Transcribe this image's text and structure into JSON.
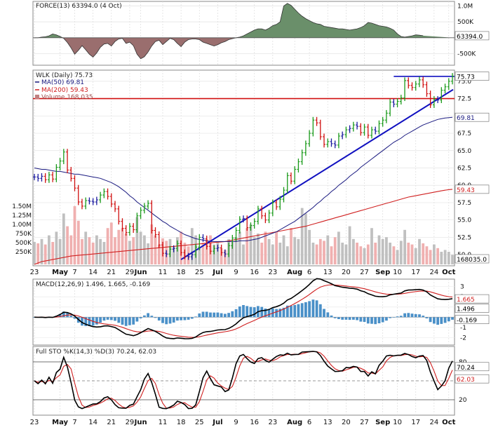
{
  "chart_data": {
    "type": "stock-chart",
    "symbol": "WLK",
    "colors": {
      "force_pos": "#6a8f6a",
      "force_neg": "#9a6e6e",
      "up": "#1a9a1a",
      "down": "#d01010",
      "neutral": "#1a1aa0",
      "ma50": "#1a1a80",
      "ma200": "#d02020",
      "trend": "#1010c0",
      "macd": "#000000",
      "signal": "#d02020",
      "hist": "#4a90c8",
      "k": "#000000",
      "d": "#d02020",
      "vol_up": "#c0c0c0",
      "vol_down": "#f0b0b0"
    },
    "force": {
      "title": "FORCE(13) 63394.0 (4 Oct)",
      "last_value": "63394.0",
      "y_ticks": [
        "1.0M",
        "500K",
        "-500K"
      ],
      "range": [
        -800000,
        1100000
      ],
      "values": [
        0,
        0,
        20000,
        30000,
        60000,
        120000,
        90000,
        40000,
        -20000,
        -150000,
        -320000,
        -520000,
        -400000,
        -250000,
        -380000,
        -520000,
        -610000,
        -480000,
        -300000,
        -200000,
        -180000,
        -260000,
        -120000,
        -40000,
        -20000,
        -180000,
        -140000,
        -250000,
        -520000,
        -660000,
        -600000,
        -450000,
        -260000,
        -120000,
        -80000,
        -220000,
        -120000,
        -20000,
        -60000,
        -180000,
        -280000,
        -140000,
        -60000,
        -40000,
        -40000,
        -60000,
        -140000,
        -180000,
        -220000,
        -260000,
        -220000,
        -160000,
        -120000,
        -60000,
        -30000,
        0,
        20000,
        60000,
        120000,
        180000,
        240000,
        280000,
        280000,
        240000,
        300000,
        380000,
        420000,
        500000,
        1000000,
        1080000,
        1020000,
        900000,
        780000,
        680000,
        600000,
        540000,
        480000,
        440000,
        420000,
        360000,
        340000,
        320000,
        300000,
        280000,
        280000,
        260000,
        240000,
        260000,
        280000,
        320000,
        380000,
        480000,
        460000,
        420000,
        380000,
        360000,
        340000,
        300000,
        240000,
        120000,
        40000,
        20000,
        40000,
        60000,
        90000,
        80000,
        63394
      ]
    },
    "price": {
      "title": "WLK (Daily) 75.73",
      "last": "75.73",
      "ma50_label": "MA(50) 69.81",
      "ma50_last": "69.81",
      "ma200_label": "MA(200) 59.43",
      "ma200_last": "59.43",
      "volume_label": "Volume 168,035",
      "volume_last": "168035.0",
      "y_ticks": [
        "75.0",
        "72.5",
        "70.0",
        "67.5",
        "65.0",
        "62.5",
        "60.0",
        "57.5",
        "55.0",
        "52.5",
        "50.0"
      ],
      "vol_ticks": [
        "1.50M",
        "1.25M",
        "1.00M",
        "750K",
        "500K",
        "250K"
      ],
      "resistance_level": 72.5,
      "resistance_upper": 75.7,
      "range": [
        48.6,
        76.4
      ],
      "close": [
        61.2,
        61.0,
        61.3,
        60.8,
        61.5,
        60.9,
        62.6,
        63.5,
        64.8,
        62.2,
        61.0,
        59.6,
        57.6,
        57.0,
        57.8,
        57.7,
        57.6,
        57.9,
        58.6,
        59.1,
        58.4,
        57.3,
        56.6,
        54.8,
        53.8,
        53.2,
        54.1,
        53.6,
        55.6,
        56.4,
        57.0,
        57.4,
        53.5,
        52.9,
        51.4,
        50.2,
        50.1,
        50.8,
        50.9,
        51.6,
        50.3,
        49.8,
        49.7,
        50.0,
        51.1,
        52.5,
        52.3,
        51.2,
        50.5,
        50.9,
        51.0,
        50.3,
        50.1,
        51.3,
        52.4,
        53.5,
        55.1,
        55.2,
        53.9,
        54.2,
        54.8,
        56.6,
        55.6,
        55.0,
        56.0,
        57.5,
        56.9,
        58.0,
        59.3,
        61.4,
        60.6,
        62.3,
        63.4,
        64.7,
        66.0,
        67.5,
        69.4,
        69.0,
        67.0,
        65.9,
        66.3,
        66.0,
        65.8,
        67.1,
        67.3,
        68.0,
        68.2,
        68.7,
        68.5,
        67.6,
        68.4,
        67.2,
        68.0,
        67.8,
        68.9,
        69.4,
        70.4,
        72.0,
        71.7,
        72.1,
        72.6,
        75.1,
        74.4,
        74.1,
        74.6,
        75.2,
        74.5,
        73.2,
        71.6,
        72.4,
        72.3,
        73.7,
        74.2,
        75.0,
        75.73
      ],
      "ma50": [
        62.5,
        62.4,
        62.3,
        62.3,
        62.2,
        62.1,
        62.0,
        62.0,
        61.9,
        61.8,
        61.7,
        61.6,
        61.6,
        61.5,
        61.4,
        61.3,
        61.2,
        61.1,
        61.0,
        60.8,
        60.6,
        60.4,
        60.1,
        59.8,
        59.4,
        59.0,
        58.5,
        58.1,
        57.6,
        57.2,
        56.8,
        56.4,
        56.0,
        55.6,
        55.2,
        54.8,
        54.5,
        54.1,
        53.8,
        53.5,
        53.2,
        52.9,
        52.7,
        52.5,
        52.3,
        52.2,
        52.1,
        52.0,
        51.9,
        51.9,
        51.9,
        51.9,
        51.9,
        51.9,
        51.9,
        51.9,
        52.0,
        52.0,
        52.0,
        52.1,
        52.2,
        52.3,
        52.5,
        52.7,
        52.9,
        53.1,
        53.3,
        53.6,
        53.9,
        54.2,
        54.5,
        54.8,
        55.2,
        55.6,
        56.0,
        56.4,
        56.8,
        57.3,
        57.7,
        58.2,
        58.6,
        59.1,
        59.5,
        60.0,
        60.4,
        60.8,
        61.3,
        61.7,
        62.1,
        62.6,
        63.0,
        63.4,
        63.8,
        64.2,
        64.6,
        65.0,
        65.4,
        65.8,
        66.2,
        66.5,
        66.8,
        67.2,
        67.5,
        67.8,
        68.1,
        68.4,
        68.7,
        68.9,
        69.1,
        69.3,
        69.5,
        69.6,
        69.7,
        69.76,
        69.81
      ],
      "ma200": [
        48.6,
        48.8,
        49.0,
        49.1,
        49.2,
        49.3,
        49.4,
        49.5,
        49.6,
        49.7,
        49.8,
        49.85,
        49.9,
        49.95,
        50.0,
        50.05,
        50.1,
        50.15,
        50.2,
        50.25,
        50.3,
        50.35,
        50.4,
        50.45,
        50.5,
        50.55,
        50.6,
        50.65,
        50.7,
        50.75,
        50.8,
        50.85,
        50.9,
        50.95,
        51.0,
        51.05,
        51.1,
        51.15,
        51.2,
        51.25,
        51.3,
        51.35,
        51.4,
        51.45,
        51.5,
        51.55,
        51.6,
        51.65,
        51.7,
        51.75,
        51.8,
        51.85,
        51.9,
        52.0,
        52.1,
        52.2,
        52.3,
        52.4,
        52.5,
        52.6,
        52.7,
        52.8,
        52.9,
        53.0,
        53.1,
        53.2,
        53.3,
        53.4,
        53.5,
        53.6,
        53.7,
        53.8,
        53.9,
        54.0,
        54.1,
        54.25,
        54.4,
        54.55,
        54.7,
        54.85,
        55.0,
        55.15,
        55.3,
        55.45,
        55.6,
        55.75,
        55.9,
        56.05,
        56.2,
        56.35,
        56.5,
        56.65,
        56.8,
        56.95,
        57.1,
        57.25,
        57.4,
        57.55,
        57.7,
        57.85,
        58.0,
        58.15,
        58.3,
        58.4,
        58.5,
        58.6,
        58.7,
        58.8,
        58.9,
        59.0,
        59.1,
        59.2,
        59.3,
        59.38,
        59.43
      ],
      "volume": [
        520000,
        480000,
        600000,
        450000,
        700000,
        520000,
        800000,
        600000,
        1300000,
        950000,
        700000,
        1500000,
        1100000,
        600000,
        800000,
        650000,
        500000,
        700000,
        600000,
        520000,
        900000,
        1050000,
        650000,
        850000,
        900000,
        750000,
        550000,
        650000,
        1200000,
        800000,
        700000,
        480000,
        1000000,
        700000,
        450000,
        620000,
        550000,
        600000,
        400000,
        650000,
        800000,
        500000,
        400000,
        900000,
        700000,
        350000,
        500000,
        600000,
        700000,
        450000,
        520000,
        350000,
        300000,
        600000,
        520000,
        650000,
        800000,
        450000,
        900000,
        1000000,
        650000,
        750000,
        500000,
        800000,
        600000,
        450000,
        800000,
        500000,
        700000,
        400000,
        900000,
        650000,
        600000,
        1450000,
        1300000,
        850000,
        500000,
        450000,
        600000,
        550000,
        700000,
        400000,
        650000,
        800000,
        500000,
        450000,
        950000,
        600000,
        500000,
        400000,
        350000,
        450000,
        900000,
        500000,
        700000,
        600000,
        650000,
        500000,
        400000,
        300000,
        550000,
        850000,
        500000,
        450000,
        350000,
        600000,
        480000,
        400000,
        300000,
        450000,
        350000,
        250000,
        300000,
        250000,
        168035
      ]
    },
    "macd": {
      "title": "MACD(12,26,9) 1.496, 1.665, -0.169",
      "macd_last": "1.496",
      "signal_last": "1.665",
      "hist_last": "-0.169",
      "y_ticks": [
        "3",
        "2",
        "1",
        "-1",
        "-2"
      ],
      "range": [
        -2.6,
        3.6
      ]
    },
    "sto": {
      "title": "Full STO %K(14,3) %D(3) 70.24, 62.03",
      "k_last": "70.24",
      "d_last": "62.03",
      "y_ticks": [
        "80",
        "50",
        "20"
      ],
      "range": [
        0,
        100
      ]
    },
    "x_labels": [
      {
        "label": "23",
        "i": 0,
        "bold": false
      },
      {
        "label": "May",
        "i": 7,
        "bold": true
      },
      {
        "label": "7",
        "i": 11,
        "bold": false
      },
      {
        "label": "14",
        "i": 16,
        "bold": false
      },
      {
        "label": "21",
        "i": 21,
        "bold": false
      },
      {
        "label": "29",
        "i": 26,
        "bold": false
      },
      {
        "label": "Jun",
        "i": 29,
        "bold": true
      },
      {
        "label": "11",
        "i": 35,
        "bold": false
      },
      {
        "label": "18",
        "i": 40,
        "bold": false
      },
      {
        "label": "25",
        "i": 45,
        "bold": false
      },
      {
        "label": "Jul",
        "i": 50,
        "bold": true
      },
      {
        "label": "9",
        "i": 55,
        "bold": false
      },
      {
        "label": "16",
        "i": 60,
        "bold": false
      },
      {
        "label": "23",
        "i": 65,
        "bold": false
      },
      {
        "label": "Aug",
        "i": 71,
        "bold": true
      },
      {
        "label": "6",
        "i": 75,
        "bold": false
      },
      {
        "label": "13",
        "i": 80,
        "bold": false
      },
      {
        "label": "20",
        "i": 85,
        "bold": false
      },
      {
        "label": "27",
        "i": 90,
        "bold": false
      },
      {
        "label": "Sep",
        "i": 95,
        "bold": true
      },
      {
        "label": "10",
        "i": 99,
        "bold": false
      },
      {
        "label": "17",
        "i": 104,
        "bold": false
      },
      {
        "label": "24",
        "i": 109,
        "bold": false
      },
      {
        "label": "Oct",
        "i": 113,
        "bold": true
      }
    ]
  }
}
